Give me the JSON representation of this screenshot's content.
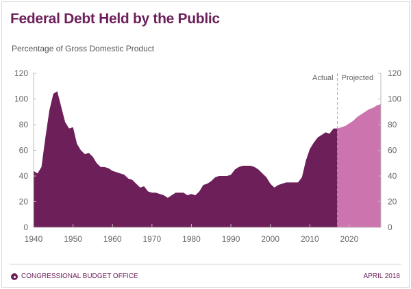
{
  "header": {
    "title": "Federal Debt Held by the Public",
    "subtitle": "Percentage of Gross Domestic Product"
  },
  "footer": {
    "agency": "CONGRESSIONAL BUDGET OFFICE",
    "date": "APRIL 2018"
  },
  "colors": {
    "actual": "#6d1f5a",
    "projected": "#cc74ae"
  },
  "chart_data": {
    "type": "area",
    "title": "Federal Debt Held by the Public",
    "ylabel": "Percentage of Gross Domestic Product",
    "xlim": [
      1940,
      2028
    ],
    "ylim": [
      0,
      120
    ],
    "xticks": [
      1940,
      1950,
      1960,
      1970,
      1980,
      1990,
      2000,
      2010,
      2020
    ],
    "yticks": [
      0,
      20,
      40,
      60,
      80,
      100,
      120
    ],
    "annotations": [
      "Actual",
      "Projected"
    ],
    "divider_year": 2017,
    "series": [
      {
        "name": "Actual",
        "x": [
          1940,
          1941,
          1942,
          1943,
          1944,
          1945,
          1946,
          1947,
          1948,
          1949,
          1950,
          1951,
          1952,
          1953,
          1954,
          1955,
          1956,
          1957,
          1958,
          1959,
          1960,
          1961,
          1962,
          1963,
          1964,
          1965,
          1966,
          1967,
          1968,
          1969,
          1970,
          1971,
          1972,
          1973,
          1974,
          1975,
          1976,
          1977,
          1978,
          1979,
          1980,
          1981,
          1982,
          1983,
          1984,
          1985,
          1986,
          1987,
          1988,
          1989,
          1990,
          1991,
          1992,
          1993,
          1994,
          1995,
          1996,
          1997,
          1998,
          1999,
          2000,
          2001,
          2002,
          2003,
          2004,
          2005,
          2006,
          2007,
          2008,
          2009,
          2010,
          2011,
          2012,
          2013,
          2014,
          2015,
          2016,
          2017
        ],
        "values": [
          44,
          42,
          47,
          70,
          91,
          104,
          106,
          94,
          82,
          77,
          78,
          65,
          60,
          57,
          58,
          55,
          50,
          47,
          47,
          46,
          44,
          43,
          42,
          41,
          38,
          37,
          34,
          31,
          32,
          28,
          27,
          27,
          26,
          25,
          23,
          25,
          27,
          27,
          27,
          25,
          26,
          25,
          28,
          33,
          34,
          36,
          39,
          40,
          40,
          40,
          41,
          45,
          47,
          48,
          48,
          48,
          47,
          45,
          42,
          39,
          34,
          31,
          33,
          34,
          35,
          35,
          35,
          35,
          39,
          52,
          61,
          66,
          70,
          72,
          74,
          73,
          77,
          77
        ]
      },
      {
        "name": "Projected",
        "x": [
          2017,
          2018,
          2019,
          2020,
          2021,
          2022,
          2023,
          2024,
          2025,
          2026,
          2027,
          2028
        ],
        "values": [
          77,
          78,
          79,
          81,
          83,
          86,
          88,
          90,
          92,
          93,
          95,
          96
        ]
      }
    ]
  }
}
